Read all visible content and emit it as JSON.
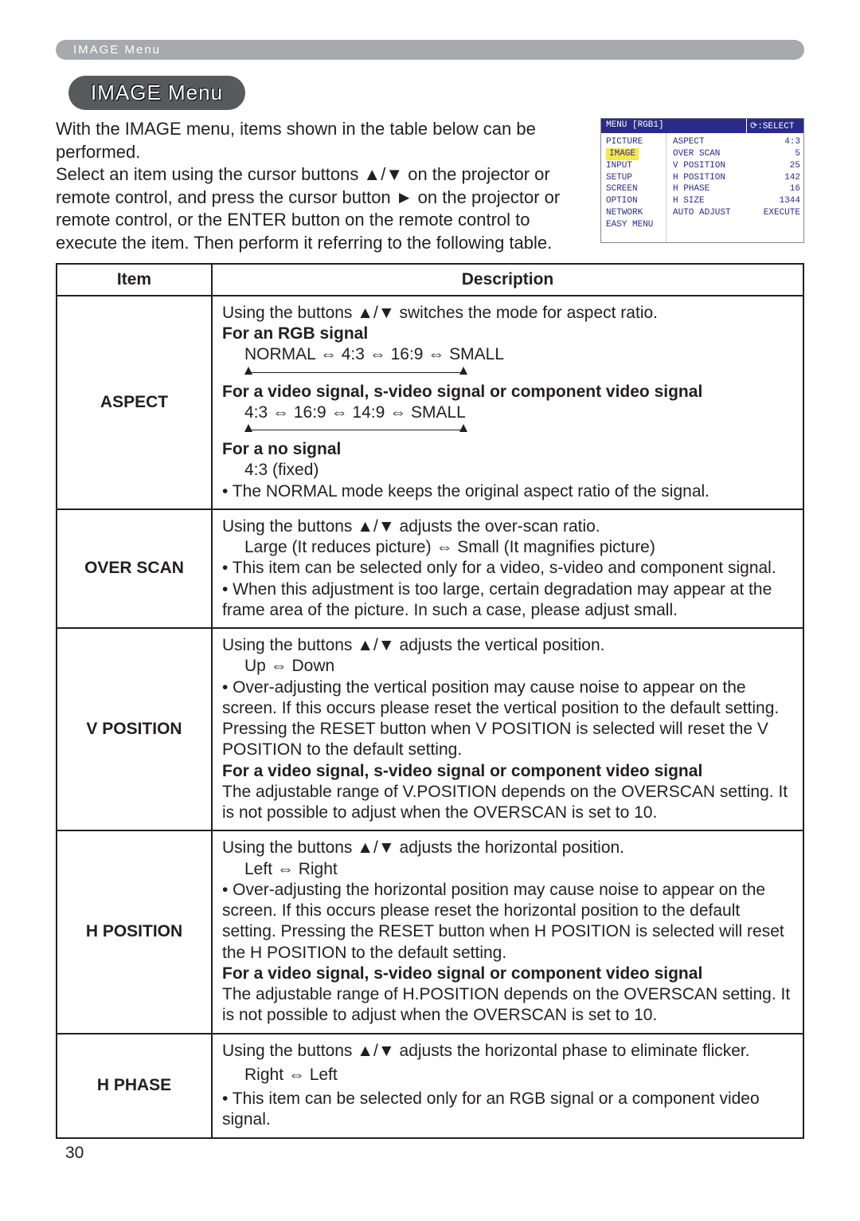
{
  "header_tab": "IMAGE Menu",
  "pill_title": "IMAGE Menu",
  "intro_p1": "With the IMAGE menu, items shown in the table below can be performed.",
  "intro_p2": "Select an item using the cursor buttons ▲/▼ on the projector or remote control, and press the cursor button ► on the projector or remote control, or the ENTER button on the remote control to execute the item. Then perform it referring to the following table.",
  "osd": {
    "top_left": "MENU [RGB1]",
    "top_right_icon": "⟳",
    "top_right": ":SELECT",
    "left_items": [
      "PICTURE",
      "IMAGE",
      "INPUT",
      "SETUP",
      "SCREEN",
      "OPTION",
      "NETWORK",
      "EASY MENU"
    ],
    "highlight_index": 1,
    "right_rows": [
      {
        "l": "ASPECT",
        "v": "4:3"
      },
      {
        "l": "OVER SCAN",
        "v": "5"
      },
      {
        "l": "V POSITION",
        "v": "25"
      },
      {
        "l": "H POSITION",
        "v": "142"
      },
      {
        "l": "H PHASE",
        "v": "16"
      },
      {
        "l": "H SIZE",
        "v": "1344"
      },
      {
        "l": "AUTO ADJUST",
        "v": "EXECUTE"
      }
    ]
  },
  "table": {
    "h_item": "Item",
    "h_desc": "Description",
    "rows": {
      "aspect": {
        "item": "ASPECT",
        "l1": "Using the buttons ▲/▼ switches the mode for aspect ratio.",
        "rgb_t": "For an RGB signal",
        "rgb_seq": "NORMAL ⇔ 4:3 ⇔ 16:9 ⇔ SMALL",
        "vid_t": "For a video signal, s-video signal or component video signal",
        "vid_seq": "4:3 ⇔ 16:9 ⇔ 14:9 ⇔ SMALL",
        "no_t": "For a no signal",
        "no_seq": "4:3 (fixed)",
        "note": "• The NORMAL mode keeps the original aspect ratio of the signal."
      },
      "overscan": {
        "item": "OVER SCAN",
        "l1": "Using the buttons ▲/▼ adjusts the over-scan ratio.",
        "l2": "Large (It reduces picture) ⇔ Small (It magnifies picture)",
        "n1": "• This item can be selected only for a video, s-video and component signal.",
        "n2": "• When this adjustment is too large, certain degradation may appear at the frame area of the picture. In such a case, please adjust small."
      },
      "vpos": {
        "item": "V POSITION",
        "l1": "Using the buttons ▲/▼ adjusts the vertical position.",
        "l2": "Up ⇔ Down",
        "n1": "• Over-adjusting the vertical position may cause noise to appear on the screen. If this occurs please reset the vertical position to the default setting. Pressing the RESET button when V POSITION is selected will reset the V POSITION to the default setting.",
        "bt": "For a video signal, s-video signal or component video signal",
        "n2": "The adjustable range of V.POSITION depends on the OVERSCAN setting. It is not possible to adjust when the OVERSCAN is set to 10."
      },
      "hpos": {
        "item": "H POSITION",
        "l1": "Using the buttons ▲/▼ adjusts the horizontal position.",
        "l2": "Left ⇔ Right",
        "n1": "• Over-adjusting the horizontal position may cause noise to appear on the screen. If this occurs please reset the horizontal position to the default setting. Pressing the RESET button when H POSITION is selected will reset the H POSITION to the default setting.",
        "bt": "For a video signal, s-video signal or component video signal",
        "n2": "The adjustable range of H.POSITION depends on the OVERSCAN setting. It is not possible to adjust when the OVERSCAN is set to 10."
      },
      "hphase": {
        "item": "H PHASE",
        "l1": "Using the buttons ▲/▼ adjusts the horizontal phase to eliminate flicker.",
        "l2": "Right ⇔ Left",
        "n1": "• This item can be selected only for an RGB signal or a component video signal."
      }
    }
  },
  "page_num": "30",
  "colors": {
    "header_bg": "#a7a9ac",
    "pill_bg": "#58595b",
    "osd_dark": "#2a2a8a",
    "osd_hl": "#f7e84a",
    "text": "#231f20"
  }
}
